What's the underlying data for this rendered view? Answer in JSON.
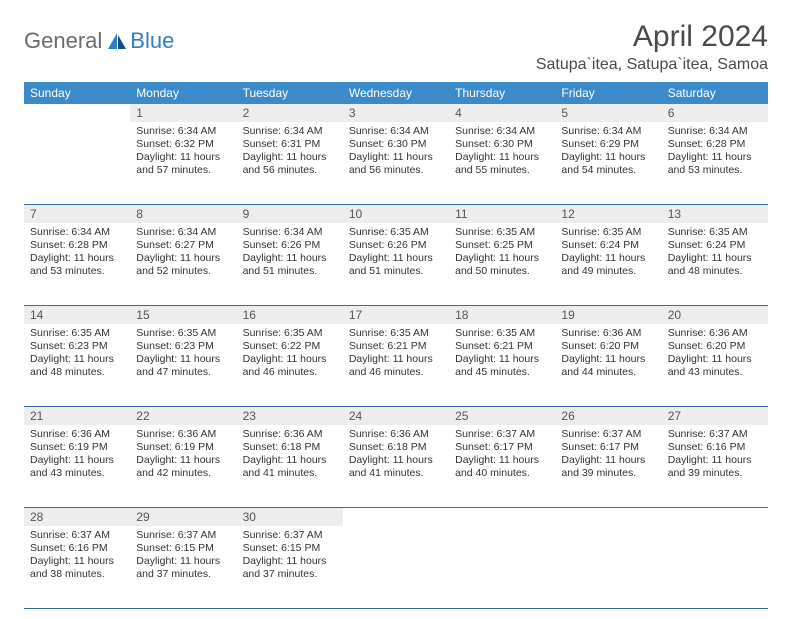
{
  "brand": {
    "general": "General",
    "blue": "Blue"
  },
  "title": "April 2024",
  "location": "Satupa`itea, Satupa`itea, Samoa",
  "colors": {
    "header_bg": "#3b8bca",
    "header_text": "#ffffff",
    "daynum_bg": "#ededed",
    "sep_color": "#2f6ea8",
    "title_color": "#4a4a4a",
    "logo_gray": "#6b6b6b",
    "logo_blue": "#2f7fc2"
  },
  "weekdays": [
    "Sunday",
    "Monday",
    "Tuesday",
    "Wednesday",
    "Thursday",
    "Friday",
    "Saturday"
  ],
  "weeks": [
    [
      null,
      {
        "n": "1",
        "sr": "6:34 AM",
        "ss": "6:32 PM",
        "dl": "11 hours and 57 minutes."
      },
      {
        "n": "2",
        "sr": "6:34 AM",
        "ss": "6:31 PM",
        "dl": "11 hours and 56 minutes."
      },
      {
        "n": "3",
        "sr": "6:34 AM",
        "ss": "6:30 PM",
        "dl": "11 hours and 56 minutes."
      },
      {
        "n": "4",
        "sr": "6:34 AM",
        "ss": "6:30 PM",
        "dl": "11 hours and 55 minutes."
      },
      {
        "n": "5",
        "sr": "6:34 AM",
        "ss": "6:29 PM",
        "dl": "11 hours and 54 minutes."
      },
      {
        "n": "6",
        "sr": "6:34 AM",
        "ss": "6:28 PM",
        "dl": "11 hours and 53 minutes."
      }
    ],
    [
      {
        "n": "7",
        "sr": "6:34 AM",
        "ss": "6:28 PM",
        "dl": "11 hours and 53 minutes."
      },
      {
        "n": "8",
        "sr": "6:34 AM",
        "ss": "6:27 PM",
        "dl": "11 hours and 52 minutes."
      },
      {
        "n": "9",
        "sr": "6:34 AM",
        "ss": "6:26 PM",
        "dl": "11 hours and 51 minutes."
      },
      {
        "n": "10",
        "sr": "6:35 AM",
        "ss": "6:26 PM",
        "dl": "11 hours and 51 minutes."
      },
      {
        "n": "11",
        "sr": "6:35 AM",
        "ss": "6:25 PM",
        "dl": "11 hours and 50 minutes."
      },
      {
        "n": "12",
        "sr": "6:35 AM",
        "ss": "6:24 PM",
        "dl": "11 hours and 49 minutes."
      },
      {
        "n": "13",
        "sr": "6:35 AM",
        "ss": "6:24 PM",
        "dl": "11 hours and 48 minutes."
      }
    ],
    [
      {
        "n": "14",
        "sr": "6:35 AM",
        "ss": "6:23 PM",
        "dl": "11 hours and 48 minutes."
      },
      {
        "n": "15",
        "sr": "6:35 AM",
        "ss": "6:23 PM",
        "dl": "11 hours and 47 minutes."
      },
      {
        "n": "16",
        "sr": "6:35 AM",
        "ss": "6:22 PM",
        "dl": "11 hours and 46 minutes."
      },
      {
        "n": "17",
        "sr": "6:35 AM",
        "ss": "6:21 PM",
        "dl": "11 hours and 46 minutes."
      },
      {
        "n": "18",
        "sr": "6:35 AM",
        "ss": "6:21 PM",
        "dl": "11 hours and 45 minutes."
      },
      {
        "n": "19",
        "sr": "6:36 AM",
        "ss": "6:20 PM",
        "dl": "11 hours and 44 minutes."
      },
      {
        "n": "20",
        "sr": "6:36 AM",
        "ss": "6:20 PM",
        "dl": "11 hours and 43 minutes."
      }
    ],
    [
      {
        "n": "21",
        "sr": "6:36 AM",
        "ss": "6:19 PM",
        "dl": "11 hours and 43 minutes."
      },
      {
        "n": "22",
        "sr": "6:36 AM",
        "ss": "6:19 PM",
        "dl": "11 hours and 42 minutes."
      },
      {
        "n": "23",
        "sr": "6:36 AM",
        "ss": "6:18 PM",
        "dl": "11 hours and 41 minutes."
      },
      {
        "n": "24",
        "sr": "6:36 AM",
        "ss": "6:18 PM",
        "dl": "11 hours and 41 minutes."
      },
      {
        "n": "25",
        "sr": "6:37 AM",
        "ss": "6:17 PM",
        "dl": "11 hours and 40 minutes."
      },
      {
        "n": "26",
        "sr": "6:37 AM",
        "ss": "6:17 PM",
        "dl": "11 hours and 39 minutes."
      },
      {
        "n": "27",
        "sr": "6:37 AM",
        "ss": "6:16 PM",
        "dl": "11 hours and 39 minutes."
      }
    ],
    [
      {
        "n": "28",
        "sr": "6:37 AM",
        "ss": "6:16 PM",
        "dl": "11 hours and 38 minutes."
      },
      {
        "n": "29",
        "sr": "6:37 AM",
        "ss": "6:15 PM",
        "dl": "11 hours and 37 minutes."
      },
      {
        "n": "30",
        "sr": "6:37 AM",
        "ss": "6:15 PM",
        "dl": "11 hours and 37 minutes."
      },
      null,
      null,
      null,
      null
    ]
  ],
  "labels": {
    "sunrise": "Sunrise:",
    "sunset": "Sunset:",
    "daylight": "Daylight:"
  }
}
